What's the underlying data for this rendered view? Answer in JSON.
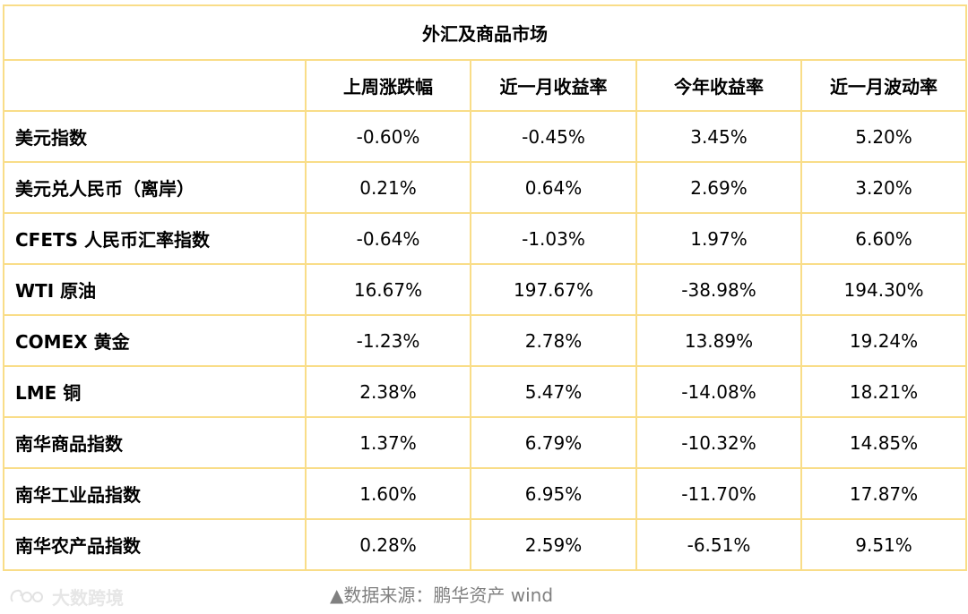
{
  "table": {
    "title": "外汇及商品市场",
    "columns": [
      "上周涨跌幅",
      "近一月收益率",
      "今年收益率",
      "近一月波动率"
    ],
    "rows": [
      {
        "label": "美元指数",
        "values": [
          "-0.60%",
          "-0.45%",
          "3.45%",
          "5.20%"
        ]
      },
      {
        "label": "美元兑人民币（离岸）",
        "values": [
          "0.21%",
          "0.64%",
          "2.69%",
          "3.20%"
        ]
      },
      {
        "label": "CFETS 人民币汇率指数",
        "values": [
          "-0.64%",
          "-1.03%",
          "1.97%",
          "6.60%"
        ]
      },
      {
        "label": "WTI 原油",
        "values": [
          "16.67%",
          "197.67%",
          "-38.98%",
          "194.30%"
        ]
      },
      {
        "label": "COMEX 黄金",
        "values": [
          "-1.23%",
          "2.78%",
          "13.89%",
          "19.24%"
        ]
      },
      {
        "label": "LME 铜",
        "values": [
          "2.38%",
          "5.47%",
          "-14.08%",
          "18.21%"
        ]
      },
      {
        "label": "南华商品指数",
        "values": [
          "1.37%",
          "6.79%",
          "-10.32%",
          "14.85%"
        ]
      },
      {
        "label": "南华工业品指数",
        "values": [
          "1.60%",
          "6.95%",
          "-11.70%",
          "17.87%"
        ]
      },
      {
        "label": "南华农产品指数",
        "values": [
          "0.28%",
          "2.59%",
          "-6.51%",
          "9.51%"
        ]
      }
    ]
  },
  "source_note": "▲数据来源：鹏华资产  wind",
  "watermark": {
    "text": "大数跨境",
    "icon": "brand-logo-icon"
  },
  "colors": {
    "border": "#f9dd88",
    "source_text": "#808080",
    "watermark": "#e6e6e6"
  }
}
